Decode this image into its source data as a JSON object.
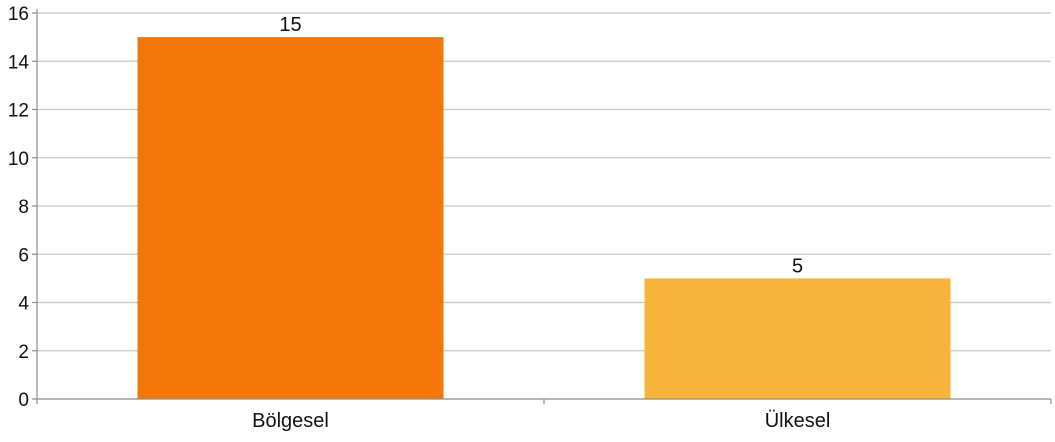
{
  "chart_data": {
    "type": "bar",
    "categories": [
      "Bölgesel",
      "Ülkesel"
    ],
    "values": [
      15,
      5
    ],
    "data_labels": [
      "15",
      "5"
    ],
    "colors": [
      "#f2760a",
      "#f7b63b"
    ],
    "title": "",
    "xlabel": "",
    "ylabel": "",
    "ylim": [
      0,
      16
    ],
    "yticks": [
      0,
      2,
      4,
      6,
      8,
      10,
      12,
      14,
      16
    ],
    "grid": true,
    "legend": "none"
  },
  "style": {
    "grid_color": "#c8c8c8",
    "axis_color": "#8c8c8c"
  }
}
